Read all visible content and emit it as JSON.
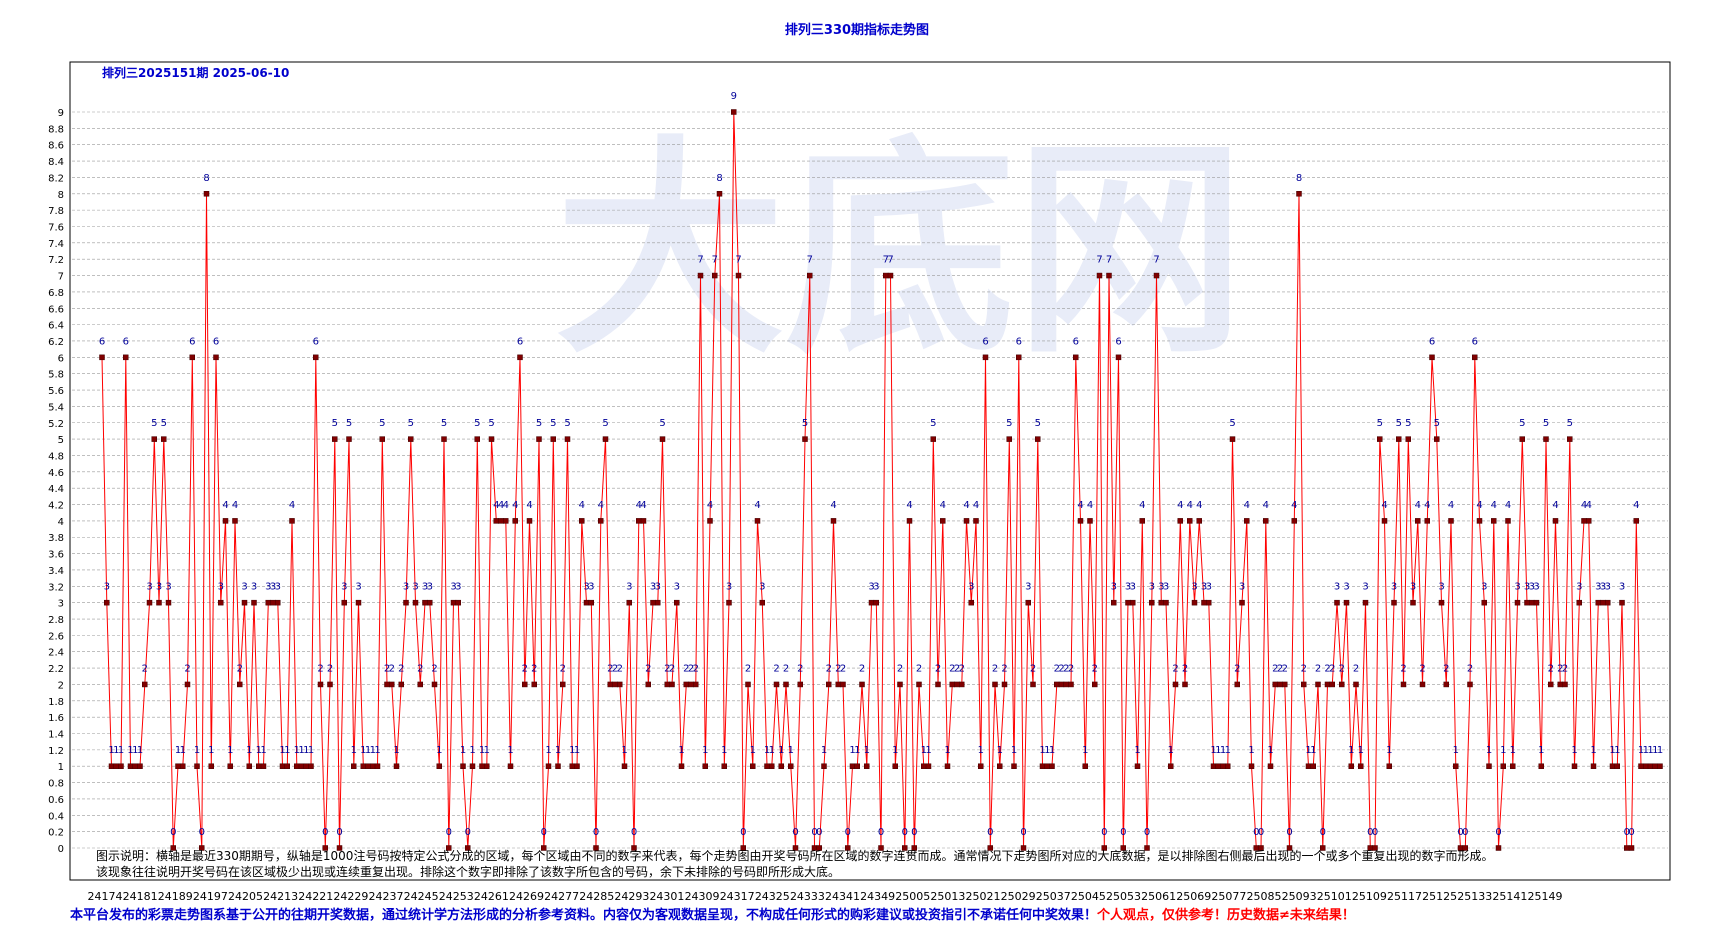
{
  "title": "排列三330期指标走势图",
  "subtitle": "排列三2025151期  2025-06-10",
  "watermark": "大底网",
  "description": "图示说明：横轴是最近330期期号，纵轴是1000注号码按特定公式分成的区域，每个区域由不同的数字来代表，每个走势图由开奖号码所在区域的数字连贯而成。通常情况下走势图所对应的大底数据，是以排除图右侧最后出现的一个或多个重复出现的数字而形成。该现象往往说明开奖号码在该区域极少出现或连续重复出现。排除这个数字即排除了该数字所包含的号码，余下未排除的号码即所形成大底。",
  "disclaimer_blue": "本平台发布的彩票走势图系基于公开的往期开奖数据，通过统计学方法形成的分析参考资料。内容仅为客观数据呈现，不构成任何形式的购彩建议或投资指引不承诺任何中奖效果！",
  "disclaimer_red": "个人观点，仅供参考！历史数据≠未来结果！",
  "colors": {
    "line": "#ff0000",
    "marker": "#800000",
    "label": "#000099",
    "title": "#0000cc",
    "grid": "#999999"
  },
  "chart_data": {
    "type": "line",
    "title": "排列三330期指标走势图",
    "ylim": [
      0,
      9
    ],
    "y_ticks": [
      "0",
      "0.2",
      "0.4",
      "0.6",
      "0.8",
      "1",
      "1.2",
      "1.4",
      "1.6",
      "1.8",
      "2",
      "2.2",
      "2.4",
      "2.6",
      "2.8",
      "3",
      "3.2",
      "3.4",
      "3.6",
      "3.8",
      "4",
      "4.2",
      "4.4",
      "4.6",
      "4.8",
      "5",
      "5.2",
      "5.4",
      "5.6",
      "5.8",
      "6",
      "6.2",
      "6.4",
      "6.6",
      "6.8",
      "7",
      "7.2",
      "7.4",
      "7.6",
      "7.8",
      "8",
      "8.2",
      "8.4",
      "8.6",
      "8.8",
      "9"
    ],
    "x_tick_labels": [
      "24174",
      "24181",
      "24189",
      "24197",
      "24205",
      "24213",
      "24221",
      "24229",
      "24237",
      "24245",
      "24253",
      "24261",
      "24269",
      "24277",
      "24285",
      "24293",
      "24301",
      "24309",
      "24317",
      "24325",
      "24333",
      "24341",
      "24349",
      "25005",
      "25013",
      "25021",
      "25029",
      "25037",
      "25045",
      "25053",
      "25061",
      "25069",
      "25077",
      "25085",
      "25093",
      "25101",
      "25109",
      "25117",
      "25125",
      "25133",
      "25141",
      "25149"
    ],
    "values": [
      6,
      3,
      1,
      1,
      1,
      6,
      1,
      1,
      1,
      2,
      3,
      5,
      3,
      5,
      3,
      0,
      1,
      1,
      2,
      6,
      1,
      0,
      8,
      1,
      6,
      3,
      4,
      1,
      4,
      2,
      3,
      1,
      3,
      1,
      1,
      3,
      3,
      3,
      1,
      1,
      4,
      1,
      1,
      1,
      1,
      6,
      2,
      0,
      2,
      5,
      0,
      3,
      5,
      1,
      3,
      1,
      1,
      1,
      1,
      5,
      2,
      2,
      1,
      2,
      3,
      5,
      3,
      2,
      3,
      3,
      2,
      1,
      5,
      0,
      3,
      3,
      1,
      0,
      1,
      5,
      1,
      1,
      5,
      4,
      4,
      4,
      1,
      4,
      6,
      2,
      4,
      2,
      5,
      0,
      1,
      5,
      1,
      2,
      5,
      1,
      1,
      4,
      3,
      3,
      0,
      4,
      5,
      2,
      2,
      2,
      1,
      3,
      0,
      4,
      4,
      2,
      3,
      3,
      5,
      2,
      2,
      3,
      1,
      2,
      2,
      2,
      7,
      1,
      4,
      7,
      8,
      1,
      3,
      9,
      7,
      0,
      2,
      1,
      4,
      3,
      1,
      1,
      2,
      1,
      2,
      1,
      0,
      2,
      5,
      7,
      0,
      0,
      1,
      2,
      4,
      2,
      2,
      0,
      1,
      1,
      2,
      1,
      3,
      3,
      0,
      7,
      7,
      1,
      2,
      0,
      4,
      0,
      2,
      1,
      1,
      5,
      2,
      4,
      1,
      2,
      2,
      2,
      4,
      3,
      4,
      1,
      6,
      0,
      2,
      1,
      2,
      5,
      1,
      6,
      0,
      3,
      2,
      5,
      1,
      1,
      1,
      2,
      2,
      2,
      2,
      6,
      4,
      1,
      4,
      2,
      7,
      0,
      7,
      3,
      6,
      0,
      3,
      3,
      1,
      4,
      0,
      3,
      7,
      3,
      3,
      1,
      2,
      4,
      2,
      4,
      3,
      4,
      3,
      3,
      1,
      1,
      1,
      1,
      5,
      2,
      3,
      4,
      1,
      0,
      0,
      4,
      1,
      2,
      2,
      2,
      0,
      4,
      8,
      2,
      1,
      1,
      2,
      0,
      2,
      2,
      3,
      2,
      3,
      1,
      2,
      1,
      3,
      0,
      0,
      5,
      4,
      1,
      3,
      5,
      2,
      5,
      3,
      4,
      2,
      4,
      6,
      5,
      3,
      2,
      4,
      1,
      0,
      0,
      2,
      6,
      4,
      3,
      1,
      4,
      0,
      1,
      4,
      1,
      3,
      5,
      3,
      3,
      3,
      1,
      5,
      2,
      4,
      2,
      2,
      5,
      1,
      3,
      4,
      4,
      1,
      3,
      3,
      3,
      1,
      1,
      3,
      0,
      0,
      4,
      1,
      1,
      1,
      1,
      1
    ],
    "grid": true
  }
}
